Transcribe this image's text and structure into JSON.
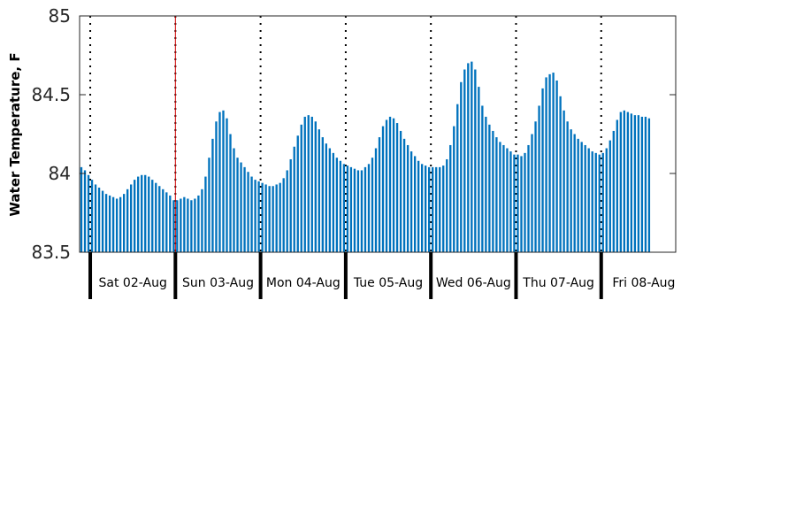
{
  "chart_data": {
    "type": "bar",
    "title": "",
    "xlabel": "",
    "ylabel": "Water Temperature, F",
    "ylim": [
      83.5,
      85
    ],
    "xlim": [
      "2025-08-01T21:00",
      "2025-08-08T21:00"
    ],
    "yticks": [
      {
        "v": 83.5,
        "label": "83.5"
      },
      {
        "v": 84,
        "label": "84"
      },
      {
        "v": 84.5,
        "label": "84.5"
      },
      {
        "v": 85,
        "label": "85"
      }
    ],
    "days": [
      {
        "boundary": "2025-08-02T00:00",
        "label": "Sat 02-Aug"
      },
      {
        "boundary": "2025-08-03T00:00",
        "label": "Sun 03-Aug"
      },
      {
        "boundary": "2025-08-04T00:00",
        "label": "Mon 04-Aug"
      },
      {
        "boundary": "2025-08-05T00:00",
        "label": "Tue 05-Aug"
      },
      {
        "boundary": "2025-08-06T00:00",
        "label": "Wed 06-Aug"
      },
      {
        "boundary": "2025-08-07T00:00",
        "label": "Thu 07-Aug"
      },
      {
        "boundary": "2025-08-08T00:00",
        "label": "Fri 08-Aug"
      }
    ],
    "marker_time": "2025-08-03T00:00",
    "series_color": "#0072BD",
    "marker_color": "#cc0000",
    "grid": "dotted vertical lines at midnight",
    "series": [
      {
        "start": "2025-08-01T21:00",
        "interval_hours": 1,
        "values": [
          84.04,
          84.02,
          83.99,
          83.96,
          83.93,
          83.91,
          83.89,
          83.87,
          83.86,
          83.85,
          83.84,
          83.85,
          83.87,
          83.9,
          83.93,
          83.96,
          83.98,
          83.99,
          83.99,
          83.98,
          83.96,
          83.94,
          83.92,
          83.9,
          83.88,
          83.86,
          83.83,
          83.83,
          83.84,
          83.85,
          83.84,
          83.83,
          83.84,
          83.86,
          83.9,
          83.98,
          84.1,
          84.22,
          84.33,
          84.39,
          84.4,
          84.35,
          84.25,
          84.16,
          84.1,
          84.07,
          84.04,
          84.01,
          83.98,
          83.96,
          83.95,
          83.94,
          83.93,
          83.92,
          83.92,
          83.93,
          83.94,
          83.97,
          84.02,
          84.09,
          84.17,
          84.24,
          84.31,
          84.36,
          84.37,
          84.36,
          84.33,
          84.28,
          84.23,
          84.19,
          84.16,
          84.13,
          84.1,
          84.08,
          84.06,
          84.05,
          84.04,
          84.03,
          84.02,
          84.02,
          84.04,
          84.06,
          84.1,
          84.16,
          84.23,
          84.3,
          84.34,
          84.36,
          84.35,
          84.32,
          84.27,
          84.22,
          84.18,
          84.14,
          84.11,
          84.08,
          84.06,
          84.05,
          84.04,
          84.04,
          84.04,
          84.04,
          84.05,
          84.09,
          84.18,
          84.3,
          84.44,
          84.58,
          84.66,
          84.7,
          84.71,
          84.66,
          84.55,
          84.43,
          84.36,
          84.31,
          84.27,
          84.23,
          84.2,
          84.18,
          84.16,
          84.14,
          84.12,
          84.12,
          84.11,
          84.13,
          84.18,
          84.25,
          84.33,
          84.43,
          84.54,
          84.61,
          84.63,
          84.64,
          84.59,
          84.49,
          84.4,
          84.33,
          84.28,
          84.25,
          84.22,
          84.2,
          84.18,
          84.16,
          84.14,
          84.13,
          84.12,
          84.13,
          84.16,
          84.21,
          84.27,
          84.34,
          84.39,
          84.4,
          84.39,
          84.38,
          84.37,
          84.37,
          84.36,
          84.36,
          84.35
        ]
      }
    ]
  }
}
